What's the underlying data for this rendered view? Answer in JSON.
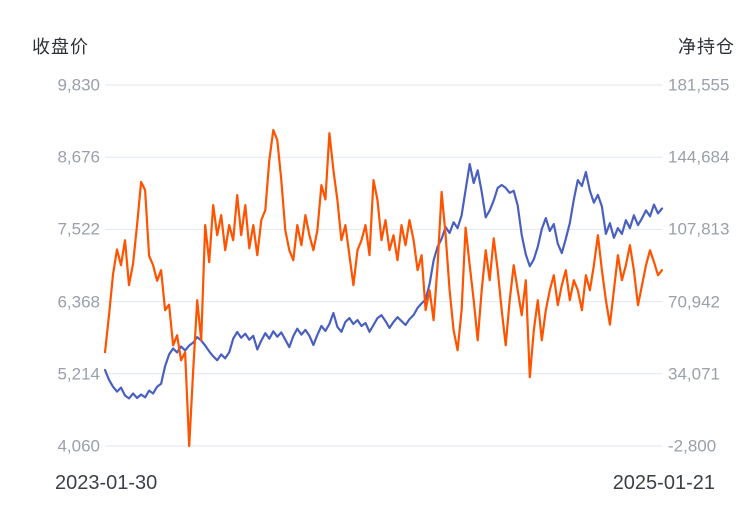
{
  "page": {
    "background": "#ffffff"
  },
  "chart_data": {
    "type": "line",
    "title": "",
    "legend": "none",
    "grid": true,
    "grid_color": "#e0e6f1",
    "x_axis": {
      "start": "2023-01-30",
      "end": "2025-01-21"
    },
    "left_axis": {
      "title": "收盘价",
      "min": 4060,
      "max": 9830,
      "tick_labels": [
        "9,830",
        "8,676",
        "7,522",
        "6,368",
        "5,214",
        "4,060"
      ],
      "tick_values": [
        9830,
        8676,
        7522,
        6368,
        5214,
        4060
      ],
      "text_color": "#9aa0a8"
    },
    "right_axis": {
      "title": "净持仓",
      "min": -2800,
      "max": 181555,
      "tick_labels": [
        "181,555",
        "144,684",
        "107,813",
        "70,942",
        "34,071",
        "-2,800"
      ],
      "tick_values": [
        181555,
        144684,
        107813,
        70942,
        34071,
        -2800
      ],
      "text_color": "#9aa0a8"
    },
    "series": [
      {
        "name": "净持仓",
        "axis": "right",
        "color": "#4a60c0",
        "values": [
          36000,
          31000,
          27500,
          25000,
          27000,
          23000,
          21500,
          24000,
          21700,
          23500,
          22000,
          25500,
          24000,
          27500,
          29000,
          38000,
          44000,
          47000,
          45000,
          48000,
          46000,
          48500,
          50000,
          52800,
          51000,
          48500,
          45500,
          43000,
          41000,
          44000,
          42000,
          45000,
          52000,
          55400,
          52500,
          54500,
          51500,
          53500,
          46500,
          51000,
          54800,
          52000,
          55800,
          53000,
          55200,
          51500,
          47700,
          53300,
          57100,
          54100,
          56500,
          53500,
          48800,
          54000,
          58500,
          56000,
          59500,
          65100,
          58000,
          55500,
          60500,
          62500,
          59500,
          61500,
          58500,
          60000,
          55500,
          59000,
          62500,
          64000,
          61000,
          57500,
          60500,
          63000,
          61000,
          59000,
          62000,
          64100,
          67700,
          70000,
          72000,
          80000,
          92000,
          99000,
          103000,
          109000,
          106000,
          111500,
          108500,
          115000,
          128000,
          141200,
          131500,
          138000,
          127000,
          114000,
          117500,
          122500,
          129000,
          130500,
          129000,
          126500,
          127500,
          120000,
          105000,
          95000,
          89000,
          92500,
          99000,
          108000,
          113600,
          107000,
          110500,
          100500,
          95700,
          103000,
          111000,
          123000,
          133000,
          130000,
          137100,
          127500,
          121500,
          125500,
          119500,
          105500,
          111000,
          103500,
          108500,
          105500,
          112500,
          108500,
          115000,
          110000,
          113500,
          117500,
          114500,
          120500,
          116000,
          118500
        ]
      },
      {
        "name": "收盘价",
        "axis": "left",
        "color": "#ff5300",
        "values": [
          5560,
          6150,
          6800,
          7200,
          6950,
          7350,
          6630,
          6980,
          7600,
          8280,
          8150,
          7100,
          6950,
          6700,
          6870,
          6230,
          6320,
          5670,
          5830,
          5430,
          5560,
          4060,
          5270,
          6390,
          5750,
          7590,
          7000,
          7910,
          7430,
          7750,
          7190,
          7590,
          7350,
          8070,
          7430,
          7910,
          7220,
          7590,
          7110,
          7670,
          7830,
          8630,
          9110,
          8950,
          8310,
          7510,
          7190,
          7030,
          7590,
          7270,
          7750,
          7430,
          7190,
          7510,
          8230,
          8000,
          9060,
          8470,
          7990,
          7350,
          7590,
          7110,
          6630,
          7190,
          7350,
          7590,
          7110,
          8310,
          7990,
          7350,
          7670,
          7190,
          7430,
          7030,
          7590,
          7270,
          7670,
          7350,
          6870,
          7110,
          6230,
          6550,
          6070,
          6950,
          8120,
          7430,
          6550,
          5910,
          5590,
          6230,
          7550,
          6950,
          6390,
          5750,
          6550,
          7190,
          6710,
          7380,
          6870,
          6230,
          5670,
          6390,
          6950,
          6550,
          6150,
          6710,
          5160,
          5910,
          6390,
          5750,
          6230,
          6550,
          6790,
          6310,
          6630,
          6870,
          6390,
          6710,
          6550,
          6230,
          6790,
          6550,
          6950,
          7430,
          6870,
          6390,
          6000,
          6550,
          7110,
          6710,
          6950,
          7270,
          6870,
          6310,
          6630,
          6950,
          7190,
          7000,
          6790,
          6870
        ]
      }
    ]
  }
}
